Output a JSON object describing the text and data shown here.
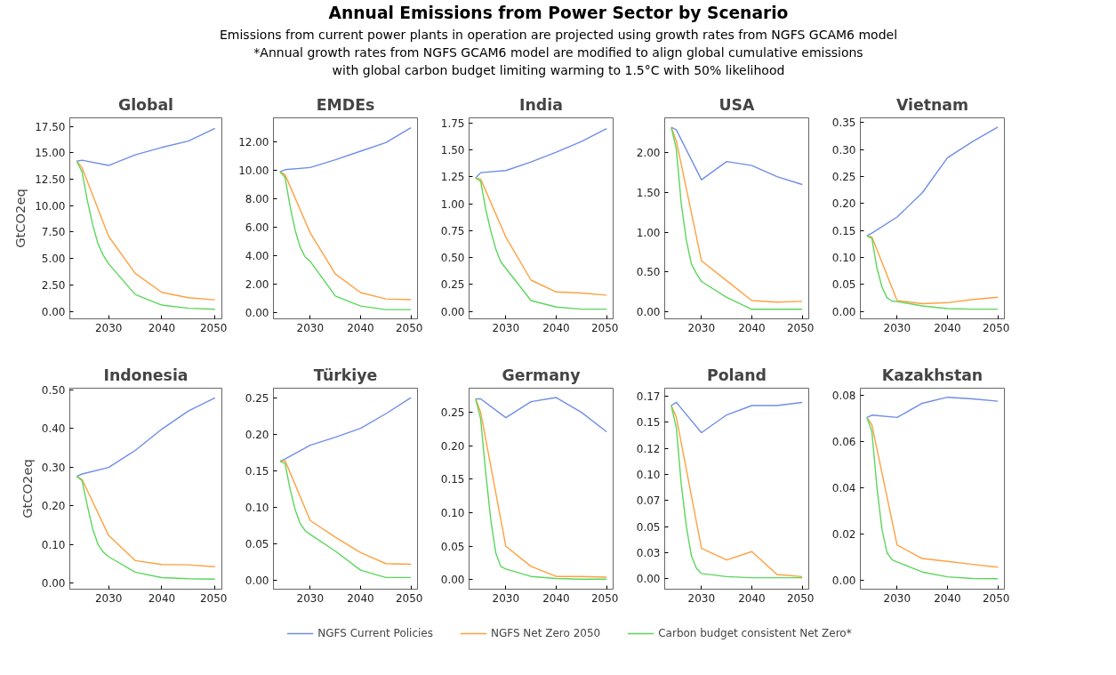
{
  "chart_data": [
    {
      "type": "other",
      "title": "Annual Emissions from Power Sector by Scenario",
      "subtitle": "Emissions from current power plants in operation are projected using growth rates from NGFS GCAM6 model\n*Annual growth rates from NGFS GCAM6 model are modified to align global cumulative emissions\nwith global carbon budget limiting warming to 1.5°C with 50% likelihood"
    },
    {
      "type": "line",
      "title": "Global",
      "ylabel": "GtCO2eq",
      "legend": "bottom",
      "grid": false,
      "xlim": [
        2022.7,
        2051.3
      ],
      "xticks": [
        2030,
        2040,
        2050
      ],
      "ylim": [
        -0.7,
        18.3
      ],
      "yticks": [
        {
          "value": 0,
          "label": "0.00"
        },
        {
          "value": 2.5,
          "label": "2.50"
        },
        {
          "value": 5,
          "label": "5.00"
        },
        {
          "value": 7.5,
          "label": "7.50"
        },
        {
          "value": 10,
          "label": "10.00"
        },
        {
          "value": 12.5,
          "label": "12.50"
        },
        {
          "value": 15,
          "label": "15.00"
        },
        {
          "value": 17.5,
          "label": "17.50"
        }
      ],
      "series": [
        {
          "name": "NGFS Current Policies",
          "color": "#6f8ee8",
          "x": [
            2024,
            2025,
            2030,
            2035,
            2040,
            2045,
            2050
          ],
          "values": [
            14.2,
            14.3,
            13.8,
            14.8,
            15.5,
            16.1,
            17.3
          ]
        },
        {
          "name": "NGFS Net Zero 2050",
          "color": "#ffa040",
          "x": [
            2024,
            2025,
            2030,
            2035,
            2040,
            2045,
            2050
          ],
          "values": [
            14.2,
            13.6,
            7.1,
            3.6,
            1.8,
            1.3,
            1.1
          ]
        },
        {
          "name": "Carbon budget consistent Net Zero*",
          "color": "#5cd65c",
          "x": [
            2024,
            2025,
            2026,
            2027,
            2028,
            2029,
            2030,
            2035,
            2040,
            2045,
            2050
          ],
          "values": [
            14.2,
            13.2,
            10.5,
            8.2,
            6.4,
            5.3,
            4.5,
            1.6,
            0.6,
            0.3,
            0.2
          ]
        }
      ]
    },
    {
      "type": "line",
      "title": "EMDEs",
      "grid": false,
      "xlim": [
        2022.7,
        2051.3
      ],
      "xticks": [
        2030,
        2040,
        2050
      ],
      "ylim": [
        -0.45,
        13.7
      ],
      "yticks": [
        {
          "value": 0,
          "label": "0.00"
        },
        {
          "value": 2,
          "label": "2.00"
        },
        {
          "value": 4,
          "label": "4.00"
        },
        {
          "value": 6,
          "label": "6.00"
        },
        {
          "value": 8,
          "label": "8.00"
        },
        {
          "value": 10,
          "label": "10.00"
        },
        {
          "value": 12,
          "label": "12.00"
        }
      ],
      "series": [
        {
          "color": "#6f8ee8",
          "x": [
            2024,
            2025,
            2030,
            2035,
            2040,
            2045,
            2050
          ],
          "values": [
            9.9,
            10.05,
            10.2,
            10.75,
            11.35,
            11.95,
            13.0
          ]
        },
        {
          "color": "#ffa040",
          "x": [
            2024,
            2025,
            2030,
            2035,
            2040,
            2045,
            2050
          ],
          "values": [
            9.9,
            9.7,
            5.6,
            2.7,
            1.4,
            0.95,
            0.9
          ]
        },
        {
          "color": "#5cd65c",
          "x": [
            2024,
            2025,
            2026,
            2027,
            2028,
            2029,
            2030,
            2035,
            2040,
            2045,
            2050
          ],
          "values": [
            9.9,
            9.5,
            7.5,
            5.8,
            4.6,
            3.9,
            3.6,
            1.15,
            0.45,
            0.2,
            0.2
          ]
        }
      ]
    },
    {
      "type": "line",
      "title": "India",
      "grid": false,
      "xlim": [
        2022.7,
        2051.3
      ],
      "xticks": [
        2030,
        2040,
        2050
      ],
      "ylim": [
        -0.07,
        1.8
      ],
      "yticks": [
        {
          "value": 0,
          "label": "0.00"
        },
        0.25,
        {
          "value": 0.5,
          "label": "0.50"
        },
        0.75,
        {
          "value": 1,
          "label": "1.00"
        },
        1.25,
        {
          "value": 1.5,
          "label": "1.50"
        },
        1.75
      ],
      "series": [
        {
          "color": "#6f8ee8",
          "x": [
            2024,
            2025,
            2030,
            2035,
            2040,
            2045,
            2050
          ],
          "values": [
            1.24,
            1.29,
            1.31,
            1.39,
            1.48,
            1.58,
            1.7
          ]
        },
        {
          "color": "#ffa040",
          "x": [
            2024,
            2025,
            2030,
            2035,
            2040,
            2045,
            2050
          ],
          "values": [
            1.24,
            1.23,
            0.69,
            0.29,
            0.18,
            0.17,
            0.15
          ]
        },
        {
          "color": "#5cd65c",
          "x": [
            2024,
            2025,
            2026,
            2027,
            2028,
            2029,
            2030,
            2035,
            2040,
            2045,
            2050
          ],
          "values": [
            1.24,
            1.21,
            0.95,
            0.75,
            0.58,
            0.46,
            0.4,
            0.1,
            0.04,
            0.02,
            0.02
          ]
        }
      ]
    },
    {
      "type": "line",
      "title": "USA",
      "grid": false,
      "xlim": [
        2022.7,
        2051.3
      ],
      "xticks": [
        2030,
        2040,
        2050
      ],
      "ylim": [
        -0.09,
        2.44
      ],
      "yticks": [
        {
          "value": 0,
          "label": "0.00"
        },
        {
          "value": 0.5,
          "label": "0.50"
        },
        {
          "value": 1,
          "label": "1.00"
        },
        {
          "value": 1.5,
          "label": "1.50"
        },
        {
          "value": 2,
          "label": "2.00"
        }
      ],
      "series": [
        {
          "color": "#6f8ee8",
          "x": [
            2024,
            2025,
            2030,
            2035,
            2040,
            2045,
            2050
          ],
          "values": [
            2.32,
            2.29,
            1.66,
            1.89,
            1.84,
            1.7,
            1.6
          ]
        },
        {
          "color": "#ffa040",
          "x": [
            2024,
            2025,
            2030,
            2035,
            2040,
            2045,
            2050
          ],
          "values": [
            2.32,
            2.15,
            0.64,
            0.39,
            0.14,
            0.12,
            0.13
          ]
        },
        {
          "color": "#5cd65c",
          "x": [
            2024,
            2025,
            2026,
            2027,
            2028,
            2029,
            2030,
            2035,
            2040,
            2045,
            2050
          ],
          "values": [
            2.32,
            2.05,
            1.35,
            0.9,
            0.6,
            0.48,
            0.38,
            0.18,
            0.03,
            0.03,
            0.03
          ]
        }
      ]
    },
    {
      "type": "line",
      "title": "Vietnam",
      "grid": false,
      "xlim": [
        2022.7,
        2051.3
      ],
      "xticks": [
        2030,
        2040,
        2050
      ],
      "ylim": [
        -0.014,
        0.359
      ],
      "yticks": [
        {
          "value": 0,
          "label": "0.00"
        },
        0.05,
        {
          "value": 0.1,
          "label": "0.10"
        },
        0.15,
        {
          "value": 0.2,
          "label": "0.20"
        },
        0.25,
        {
          "value": 0.3,
          "label": "0.30"
        },
        0.35
      ],
      "series": [
        {
          "color": "#6f8ee8",
          "x": [
            2024,
            2025,
            2030,
            2035,
            2040,
            2045,
            2050
          ],
          "values": [
            0.14,
            0.145,
            0.175,
            0.22,
            0.285,
            0.315,
            0.342
          ]
        },
        {
          "color": "#ffa040",
          "x": [
            2024,
            2025,
            2030,
            2035,
            2040,
            2045,
            2050
          ],
          "values": [
            0.14,
            0.138,
            0.02,
            0.014,
            0.016,
            0.022,
            0.026
          ]
        },
        {
          "color": "#5cd65c",
          "x": [
            2024,
            2025,
            2026,
            2027,
            2028,
            2029,
            2030,
            2035,
            2040,
            2045,
            2050
          ],
          "values": [
            0.14,
            0.135,
            0.08,
            0.045,
            0.025,
            0.019,
            0.018,
            0.01,
            0.005,
            0.004,
            0.004
          ]
        }
      ]
    },
    {
      "type": "line",
      "title": "Indonesia",
      "ylabel": "GtCO2eq",
      "grid": false,
      "xlim": [
        2022.7,
        2051.3
      ],
      "xticks": [
        2030,
        2040,
        2050
      ],
      "ylim": [
        -0.016,
        0.504
      ],
      "yticks": [
        {
          "value": 0,
          "label": "0.00"
        },
        {
          "value": 0.1,
          "label": "0.10"
        },
        {
          "value": 0.2,
          "label": "0.20"
        },
        {
          "value": 0.3,
          "label": "0.30"
        },
        {
          "value": 0.4,
          "label": "0.40"
        },
        {
          "value": 0.5,
          "label": "0.50"
        }
      ],
      "series": [
        {
          "color": "#6f8ee8",
          "x": [
            2024,
            2025,
            2030,
            2035,
            2040,
            2045,
            2050
          ],
          "values": [
            0.276,
            0.282,
            0.299,
            0.343,
            0.398,
            0.445,
            0.479
          ]
        },
        {
          "color": "#ffa040",
          "x": [
            2024,
            2025,
            2030,
            2035,
            2040,
            2045,
            2050
          ],
          "values": [
            0.276,
            0.268,
            0.123,
            0.058,
            0.048,
            0.047,
            0.042
          ]
        },
        {
          "color": "#5cd65c",
          "x": [
            2024,
            2025,
            2026,
            2027,
            2028,
            2029,
            2030,
            2035,
            2040,
            2045,
            2050
          ],
          "values": [
            0.276,
            0.265,
            0.2,
            0.14,
            0.1,
            0.08,
            0.068,
            0.028,
            0.014,
            0.011,
            0.01
          ]
        }
      ]
    },
    {
      "type": "line",
      "title": "Türkiye",
      "grid": false,
      "xlim": [
        2022.7,
        2051.3
      ],
      "xticks": [
        2030,
        2040,
        2050
      ],
      "ylim": [
        -0.012,
        0.263
      ],
      "yticks": [
        {
          "value": 0,
          "label": "0.00"
        },
        0.05,
        {
          "value": 0.1,
          "label": "0.10"
        },
        0.15,
        {
          "value": 0.2,
          "label": "0.20"
        },
        0.25
      ],
      "series": [
        {
          "color": "#6f8ee8",
          "x": [
            2024,
            2025,
            2030,
            2035,
            2040,
            2045,
            2050
          ],
          "values": [
            0.163,
            0.166,
            0.185,
            0.196,
            0.208,
            0.228,
            0.25
          ]
        },
        {
          "color": "#ffa040",
          "x": [
            2024,
            2025,
            2030,
            2035,
            2040,
            2045,
            2050
          ],
          "values": [
            0.163,
            0.164,
            0.082,
            0.059,
            0.038,
            0.023,
            0.022
          ]
        },
        {
          "color": "#5cd65c",
          "x": [
            2024,
            2025,
            2026,
            2027,
            2028,
            2029,
            2030,
            2035,
            2040,
            2045,
            2050
          ],
          "values": [
            0.163,
            0.16,
            0.125,
            0.097,
            0.078,
            0.068,
            0.063,
            0.04,
            0.014,
            0.004,
            0.004
          ]
        }
      ]
    },
    {
      "type": "line",
      "title": "Germany",
      "grid": false,
      "xlim": [
        2022.7,
        2051.3
      ],
      "xticks": [
        2030,
        2040,
        2050
      ],
      "ylim": [
        -0.014,
        0.286
      ],
      "yticks": [
        {
          "value": 0,
          "label": "0.00"
        },
        0.05,
        {
          "value": 0.1,
          "label": "0.10"
        },
        0.15,
        {
          "value": 0.2,
          "label": "0.20"
        },
        0.25
      ],
      "series": [
        {
          "color": "#6f8ee8",
          "x": [
            2024,
            2025,
            2030,
            2035,
            2040,
            2045,
            2050
          ],
          "values": [
            0.27,
            0.27,
            0.242,
            0.266,
            0.272,
            0.25,
            0.221
          ]
        },
        {
          "color": "#ffa040",
          "x": [
            2024,
            2025,
            2030,
            2035,
            2040,
            2045,
            2050
          ],
          "values": [
            0.27,
            0.25,
            0.05,
            0.02,
            0.005,
            0.005,
            0.004
          ]
        },
        {
          "color": "#5cd65c",
          "x": [
            2024,
            2025,
            2026,
            2027,
            2028,
            2029,
            2030,
            2035,
            2040,
            2045,
            2050
          ],
          "values": [
            0.27,
            0.24,
            0.16,
            0.09,
            0.04,
            0.02,
            0.016,
            0.005,
            0.002,
            0.001,
            0.001
          ]
        }
      ]
    },
    {
      "type": "line",
      "title": "Poland",
      "grid": false,
      "xlim": [
        2022.7,
        2051.3
      ],
      "xticks": [
        2030,
        2040,
        2050
      ],
      "ylim": [
        -0.01,
        0.1826
      ],
      "yticks": [
        {
          "value": 0,
          "label": "0.00"
        },
        {
          "value": 0.025,
          "label": "0.03"
        },
        0.05,
        {
          "value": 0.075,
          "label": "0.07"
        },
        {
          "value": 0.1,
          "label": "0.10"
        },
        {
          "value": 0.125,
          "label": "0.12"
        },
        0.15,
        {
          "value": 0.175,
          "label": "0.17"
        }
      ],
      "series": [
        {
          "color": "#6f8ee8",
          "x": [
            2024,
            2025,
            2030,
            2035,
            2040,
            2045,
            2050
          ],
          "values": [
            0.166,
            0.169,
            0.14,
            0.157,
            0.166,
            0.166,
            0.169
          ]
        },
        {
          "color": "#ffa040",
          "x": [
            2024,
            2025,
            2030,
            2035,
            2040,
            2045,
            2050
          ],
          "values": [
            0.166,
            0.155,
            0.029,
            0.018,
            0.026,
            0.004,
            0.002
          ]
        },
        {
          "color": "#5cd65c",
          "x": [
            2024,
            2025,
            2026,
            2027,
            2028,
            2029,
            2030,
            2035,
            2040,
            2045,
            2050
          ],
          "values": [
            0.166,
            0.145,
            0.09,
            0.05,
            0.022,
            0.01,
            0.005,
            0.002,
            0.001,
            0.001,
            0.001
          ]
        }
      ]
    },
    {
      "type": "line",
      "title": "Kazakhstan",
      "grid": false,
      "xlim": [
        2022.7,
        2051.3
      ],
      "xticks": [
        2030,
        2040,
        2050
      ],
      "ylim": [
        -0.0037,
        0.0829
      ],
      "yticks": [
        {
          "value": 0,
          "label": "0.00"
        },
        0.02,
        0.04,
        0.06,
        0.08
      ],
      "series": [
        {
          "color": "#6f8ee8",
          "x": [
            2024,
            2025,
            2030,
            2035,
            2040,
            2045,
            2050
          ],
          "values": [
            0.0703,
            0.0713,
            0.0703,
            0.0764,
            0.079,
            0.0783,
            0.0773
          ]
        },
        {
          "color": "#ffa040",
          "x": [
            2024,
            2025,
            2030,
            2035,
            2040,
            2045,
            2050
          ],
          "values": [
            0.0703,
            0.067,
            0.0153,
            0.0095,
            0.0083,
            0.007,
            0.0058
          ]
        },
        {
          "color": "#5cd65c",
          "x": [
            2024,
            2025,
            2026,
            2027,
            2028,
            2029,
            2030,
            2035,
            2040,
            2045,
            2050
          ],
          "values": [
            0.0703,
            0.064,
            0.04,
            0.022,
            0.012,
            0.009,
            0.008,
            0.0037,
            0.0016,
            0.0009,
            0.0008
          ]
        }
      ]
    }
  ]
}
